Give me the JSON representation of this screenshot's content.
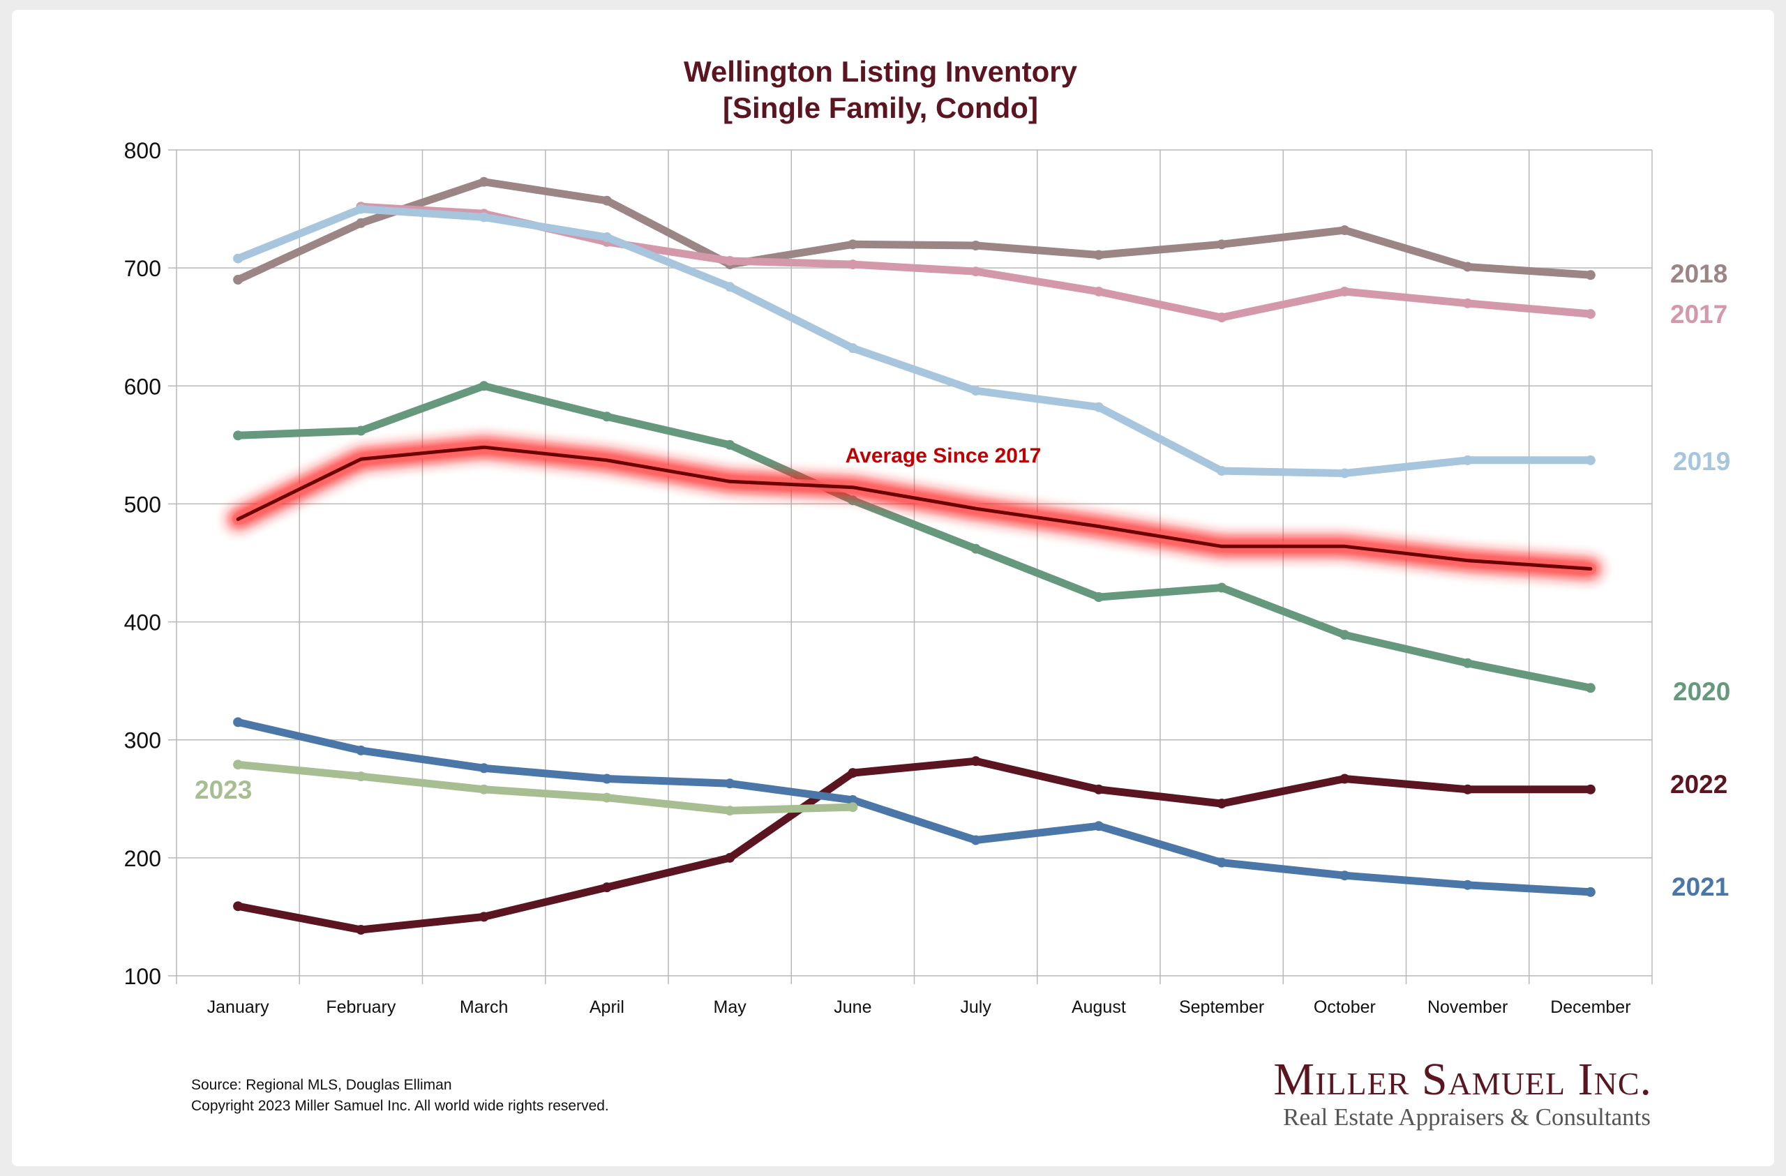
{
  "chart_data": {
    "type": "line",
    "title": "Wellington Listing Inventory",
    "subtitle": "[Single Family, Condo]",
    "xlabel": "",
    "ylabel": "",
    "categories": [
      "January",
      "February",
      "March",
      "April",
      "May",
      "June",
      "July",
      "August",
      "September",
      "October",
      "November",
      "December"
    ],
    "ylim": [
      100,
      800
    ],
    "yticks": [
      100,
      200,
      300,
      400,
      500,
      600,
      700,
      800
    ],
    "grid": true,
    "series": [
      {
        "name": "2018",
        "color": "#9b8585",
        "values": [
          690,
          738,
          773,
          757,
          703,
          720,
          719,
          711,
          720,
          732,
          701,
          694
        ]
      },
      {
        "name": "2017",
        "color": "#d498ab",
        "values": [
          null,
          752,
          746,
          722,
          706,
          703,
          697,
          680,
          658,
          680,
          670,
          661
        ]
      },
      {
        "name": "2019",
        "color": "#a7c5dc",
        "values": [
          708,
          750,
          743,
          726,
          684,
          632,
          596,
          582,
          528,
          526,
          537,
          537
        ]
      },
      {
        "name": "2020",
        "color": "#66987e",
        "values": [
          558,
          562,
          600,
          574,
          550,
          503,
          462,
          421,
          429,
          389,
          365,
          344
        ]
      },
      {
        "name": "2022",
        "color": "#5a1520",
        "values": [
          159,
          139,
          150,
          175,
          200,
          272,
          282,
          258,
          246,
          267,
          258,
          258
        ]
      },
      {
        "name": "2021",
        "color": "#4a77a8",
        "values": [
          315,
          291,
          276,
          267,
          263,
          249,
          215,
          227,
          196,
          185,
          177,
          171
        ]
      },
      {
        "name": "2023",
        "color": "#a7bd92",
        "values": [
          279,
          269,
          258,
          251,
          240,
          243,
          null,
          null,
          null,
          null,
          null,
          null
        ]
      },
      {
        "name": "Average  Since 2017",
        "color": "#c00000",
        "values": [
          487,
          538,
          548,
          537,
          519,
          514,
          496,
          481,
          464,
          464,
          452,
          445
        ]
      }
    ]
  },
  "series_labels": {
    "2018": "2018",
    "2017": "2017",
    "2019": "2019",
    "2020": "2020",
    "2022": "2022",
    "2021": "2021",
    "2023": "2023",
    "average": "Average  Since 2017"
  },
  "footer": {
    "source": "Source: Regional MLS, Douglas Elliman",
    "copyright": "Copyright 2023 Miller Samuel Inc.  All world wide rights reserved."
  },
  "logo": {
    "name": "Miller Samuel Inc.",
    "tagline": "Real Estate Appraisers & Consultants"
  }
}
